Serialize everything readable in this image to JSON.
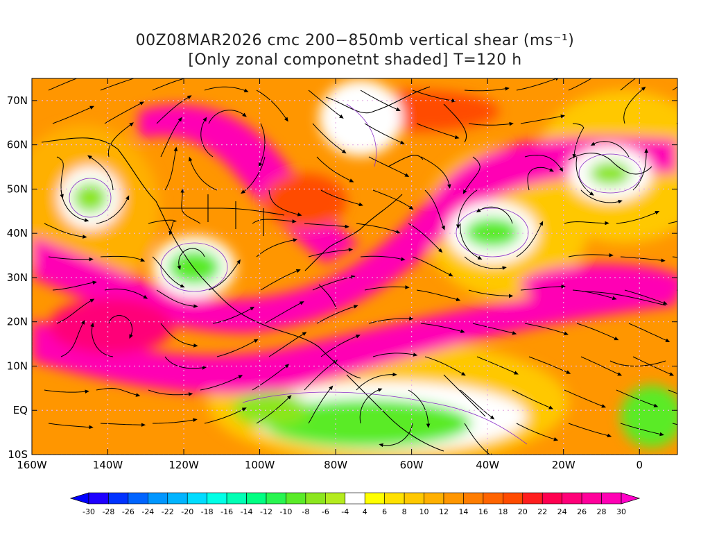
{
  "title": {
    "line1": "00Z08MAR2026 cmc 200−850mb vertical shear (ms⁻¹)",
    "line2": "[Only zonal componetnt shaded] T=120 h"
  },
  "axes": {
    "lon_labels": [
      "160W",
      "140W",
      "120W",
      "100W",
      "80W",
      "60W",
      "40W",
      "20W",
      "0"
    ],
    "lat_labels": [
      "70N",
      "60N",
      "50N",
      "40N",
      "30N",
      "20N",
      "10N",
      "EQ",
      "10S"
    ],
    "lon_values": [
      -160,
      -140,
      -120,
      -100,
      -80,
      -60,
      -40,
      -20,
      0
    ],
    "lat_values": [
      70,
      60,
      50,
      40,
      30,
      20,
      10,
      0,
      -10
    ],
    "lon_range": [
      -160,
      10
    ],
    "lat_range": [
      -10,
      75
    ]
  },
  "colorbar": {
    "ticks": [
      "-30",
      "-28",
      "-26",
      "-24",
      "-22",
      "-20",
      "-18",
      "-16",
      "-14",
      "-12",
      "-10",
      "-8",
      "-6",
      "-4",
      "4",
      "6",
      "8",
      "10",
      "12",
      "14",
      "16",
      "18",
      "20",
      "22",
      "24",
      "26",
      "28",
      "30"
    ],
    "colors": [
      "#1e00ff",
      "#0032ff",
      "#0064ff",
      "#0096ff",
      "#00b4ff",
      "#00dcff",
      "#00ffe6",
      "#00ffb4",
      "#00ff82",
      "#28f550",
      "#5aeb28",
      "#8ce61e",
      "#b4eb1e",
      "#ffffff",
      "#ffff00",
      "#ffe100",
      "#ffc800",
      "#ffb000",
      "#ff9600",
      "#ff7d00",
      "#ff6400",
      "#ff4b00",
      "#ff1e1e",
      "#ff0050",
      "#ff0078",
      "#ff009b",
      "#ff00b4"
    ],
    "underflow_color": "#0000ff",
    "overflow_color": "#ff00c8"
  }
}
